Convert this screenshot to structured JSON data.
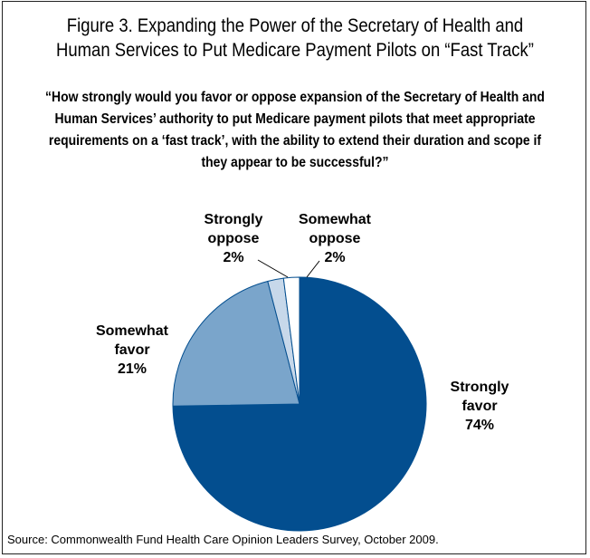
{
  "title": "Figure 3. Expanding the Power of the Secretary of Health and\nHuman Services to Put Medicare Payment Pilots on “Fast Track”",
  "question": "“How strongly would you favor or oppose expansion of the Secretary of Health and Human Services’ authority to put Medicare payment pilots that meet appropriate requirements on a ‘fast track’, with the ability to extend their duration and scope if they appear to be successful?”",
  "source": "Source: Commonwealth Fund Health Care Opinion Leaders Survey, October 2009.",
  "chart_data": {
    "type": "pie",
    "start_angle_deg": 0,
    "direction": "clockwise",
    "slices": [
      {
        "name_lines": [
          "Strongly",
          "favor"
        ],
        "value": 74,
        "label": "74%",
        "color": "#034e8f"
      },
      {
        "name_lines": [
          "Somewhat",
          "favor"
        ],
        "value": 21,
        "label": "21%",
        "color": "#7aa5cb"
      },
      {
        "name_lines": [
          "Strongly",
          "oppose"
        ],
        "value": 2,
        "label": "2%",
        "color": "#c7d8ea"
      },
      {
        "name_lines": [
          "Somewhat",
          "oppose"
        ],
        "value": 2,
        "label": "2%",
        "color": "#ffffff"
      }
    ],
    "stroke_color": "#034e8f"
  }
}
